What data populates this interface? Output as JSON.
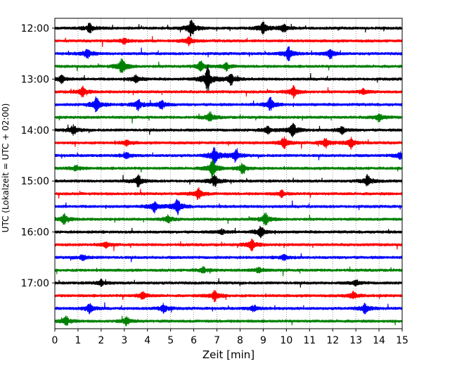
{
  "chart_data": {
    "type": "line",
    "description_free": true,
    "xlabel": "Zeit  [min]",
    "ylabel": "UTC (Lokalzeit = UTC + 02:00)",
    "xlim": [
      0,
      15
    ],
    "x_ticks": [
      0,
      1,
      2,
      3,
      4,
      5,
      6,
      7,
      8,
      9,
      10,
      11,
      12,
      13,
      14,
      15
    ],
    "y_ticks": [
      "12:00",
      "13:00",
      "14:00",
      "15:00",
      "16:00",
      "17:00"
    ],
    "grid": "x-dotted",
    "trace_interval_minutes": 15,
    "start_time": "12:00",
    "colors_cycle": [
      "#000000",
      "#ff0000",
      "#0000ff",
      "#008000"
    ],
    "traces": [
      {
        "time": "12:00",
        "color": "#000000",
        "bursts": [
          [
            1.5,
            5
          ],
          [
            5.9,
            9
          ],
          [
            9.0,
            6
          ],
          [
            9.9,
            4
          ]
        ]
      },
      {
        "time": "12:15",
        "color": "#ff0000",
        "bursts": [
          [
            3.0,
            3
          ],
          [
            5.8,
            4
          ]
        ]
      },
      {
        "time": "12:30",
        "color": "#0000ff",
        "bursts": [
          [
            1.4,
            5
          ],
          [
            10.1,
            7
          ],
          [
            11.9,
            5
          ]
        ]
      },
      {
        "time": "12:45",
        "color": "#008000",
        "bursts": [
          [
            2.9,
            9
          ],
          [
            6.3,
            5
          ],
          [
            7.4,
            4
          ]
        ]
      },
      {
        "time": "13:00",
        "color": "#000000",
        "bursts": [
          [
            0.3,
            4
          ],
          [
            3.5,
            4
          ],
          [
            6.6,
            13
          ],
          [
            7.6,
            6
          ]
        ]
      },
      {
        "time": "13:15",
        "color": "#ff0000",
        "bursts": [
          [
            1.2,
            5
          ],
          [
            10.3,
            6
          ],
          [
            13.3,
            3
          ]
        ]
      },
      {
        "time": "13:30",
        "color": "#0000ff",
        "bursts": [
          [
            1.8,
            8
          ],
          [
            3.6,
            6
          ],
          [
            4.6,
            5
          ],
          [
            9.3,
            7
          ]
        ]
      },
      {
        "time": "13:45",
        "color": "#008000",
        "bursts": [
          [
            6.7,
            5
          ],
          [
            14.0,
            4
          ]
        ]
      },
      {
        "time": "14:00",
        "color": "#000000",
        "bursts": [
          [
            0.8,
            5
          ],
          [
            9.2,
            4
          ],
          [
            10.3,
            8
          ],
          [
            12.4,
            4
          ]
        ]
      },
      {
        "time": "14:15",
        "color": "#ff0000",
        "bursts": [
          [
            3.1,
            3
          ],
          [
            9.9,
            6
          ],
          [
            11.7,
            5
          ],
          [
            12.8,
            6
          ]
        ]
      },
      {
        "time": "14:30",
        "color": "#0000ff",
        "bursts": [
          [
            3.1,
            3
          ],
          [
            6.9,
            9
          ],
          [
            7.8,
            6
          ],
          [
            14.9,
            4
          ]
        ]
      },
      {
        "time": "14:45",
        "color": "#008000",
        "bursts": [
          [
            0.9,
            3
          ],
          [
            6.8,
            9
          ],
          [
            8.1,
            5
          ]
        ]
      },
      {
        "time": "15:00",
        "color": "#000000",
        "bursts": [
          [
            3.6,
            6
          ],
          [
            6.9,
            6
          ],
          [
            13.5,
            6
          ]
        ]
      },
      {
        "time": "15:15",
        "color": "#ff0000",
        "bursts": [
          [
            6.2,
            6
          ],
          [
            9.8,
            3
          ]
        ]
      },
      {
        "time": "15:30",
        "color": "#0000ff",
        "bursts": [
          [
            4.3,
            6
          ],
          [
            5.3,
            8
          ]
        ]
      },
      {
        "time": "15:45",
        "color": "#008000",
        "bursts": [
          [
            0.4,
            5
          ],
          [
            4.9,
            4
          ],
          [
            9.1,
            7
          ]
        ]
      },
      {
        "time": "16:00",
        "color": "#000000",
        "bursts": [
          [
            7.2,
            3
          ],
          [
            8.9,
            6
          ]
        ]
      },
      {
        "time": "16:15",
        "color": "#ff0000",
        "bursts": [
          [
            2.2,
            3
          ],
          [
            8.5,
            6
          ]
        ]
      },
      {
        "time": "16:30",
        "color": "#0000ff",
        "bursts": [
          [
            1.2,
            3
          ],
          [
            9.9,
            3
          ]
        ]
      },
      {
        "time": "16:45",
        "color": "#008000",
        "bursts": [
          [
            6.4,
            3
          ],
          [
            8.8,
            3
          ]
        ]
      },
      {
        "time": "17:00",
        "color": "#000000",
        "bursts": [
          [
            2.0,
            3
          ],
          [
            13.0,
            3
          ]
        ]
      },
      {
        "time": "17:15",
        "color": "#ff0000",
        "bursts": [
          [
            3.8,
            4
          ],
          [
            6.9,
            6
          ],
          [
            12.9,
            4
          ]
        ]
      },
      {
        "time": "17:30",
        "color": "#0000ff",
        "bursts": [
          [
            1.5,
            5
          ],
          [
            4.7,
            5
          ],
          [
            8.6,
            3
          ],
          [
            13.4,
            5
          ]
        ]
      },
      {
        "time": "17:45",
        "color": "#008000",
        "bursts": [
          [
            0.5,
            5
          ],
          [
            3.1,
            4
          ]
        ]
      }
    ]
  }
}
